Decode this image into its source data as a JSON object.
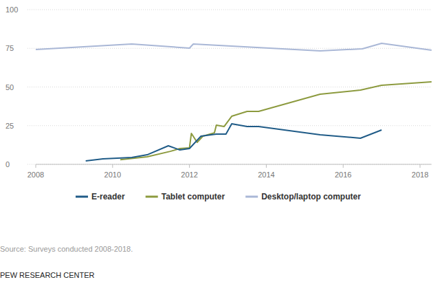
{
  "chart_data": {
    "type": "line",
    "xlim": [
      2008,
      2018.3
    ],
    "xticks": [
      2008,
      2010,
      2012,
      2014,
      2016,
      2018
    ],
    "ylim": [
      0,
      100
    ],
    "yticks": [
      0,
      25,
      50,
      75,
      100
    ],
    "grid": true,
    "legend": "bottom",
    "series": [
      {
        "name": "E-reader",
        "color": "#1f5b87",
        "x": [
          2009.3,
          2009.75,
          2010.5,
          2010.9,
          2011.45,
          2011.75,
          2012.0,
          2012.3,
          2012.7,
          2012.95,
          2013.1,
          2013.5,
          2013.8,
          2015.4,
          2016.45,
          2017.0
        ],
        "values": [
          2.2,
          3.6,
          4.4,
          6.2,
          12,
          9.3,
          10.2,
          18.2,
          19.6,
          19.6,
          26.2,
          24.4,
          24.4,
          19.1,
          16.9,
          22.2
        ]
      },
      {
        "name": "Tablet computer",
        "color": "#8c9a3e",
        "x": [
          2010.2,
          2010.9,
          2011.5,
          2011.75,
          2012.0,
          2012.05,
          2012.2,
          2012.35,
          2012.6,
          2012.65,
          2012.7,
          2012.9,
          2013.1,
          2013.5,
          2013.8,
          2015.4,
          2016.45,
          2017.0,
          2018.3
        ],
        "values": [
          3,
          4.9,
          8.4,
          10.2,
          10.7,
          20,
          14.2,
          18.2,
          20,
          20.4,
          25.3,
          24.4,
          31.1,
          34.2,
          34.2,
          45.3,
          48,
          51.1,
          53.3
        ]
      },
      {
        "name": "Desktop/laptop computer",
        "color": "#a9b7d6",
        "x": [
          2008.0,
          2010.5,
          2012.0,
          2012.1,
          2015.4,
          2016.5,
          2017.0,
          2018.3
        ],
        "values": [
          74.2,
          77.8,
          75.1,
          77.8,
          73.3,
          74.7,
          78.2,
          73.8
        ]
      }
    ],
    "source": "Source: Surveys conducted 2008-2018.",
    "credit": "PEW RESEARCH CENTER"
  }
}
